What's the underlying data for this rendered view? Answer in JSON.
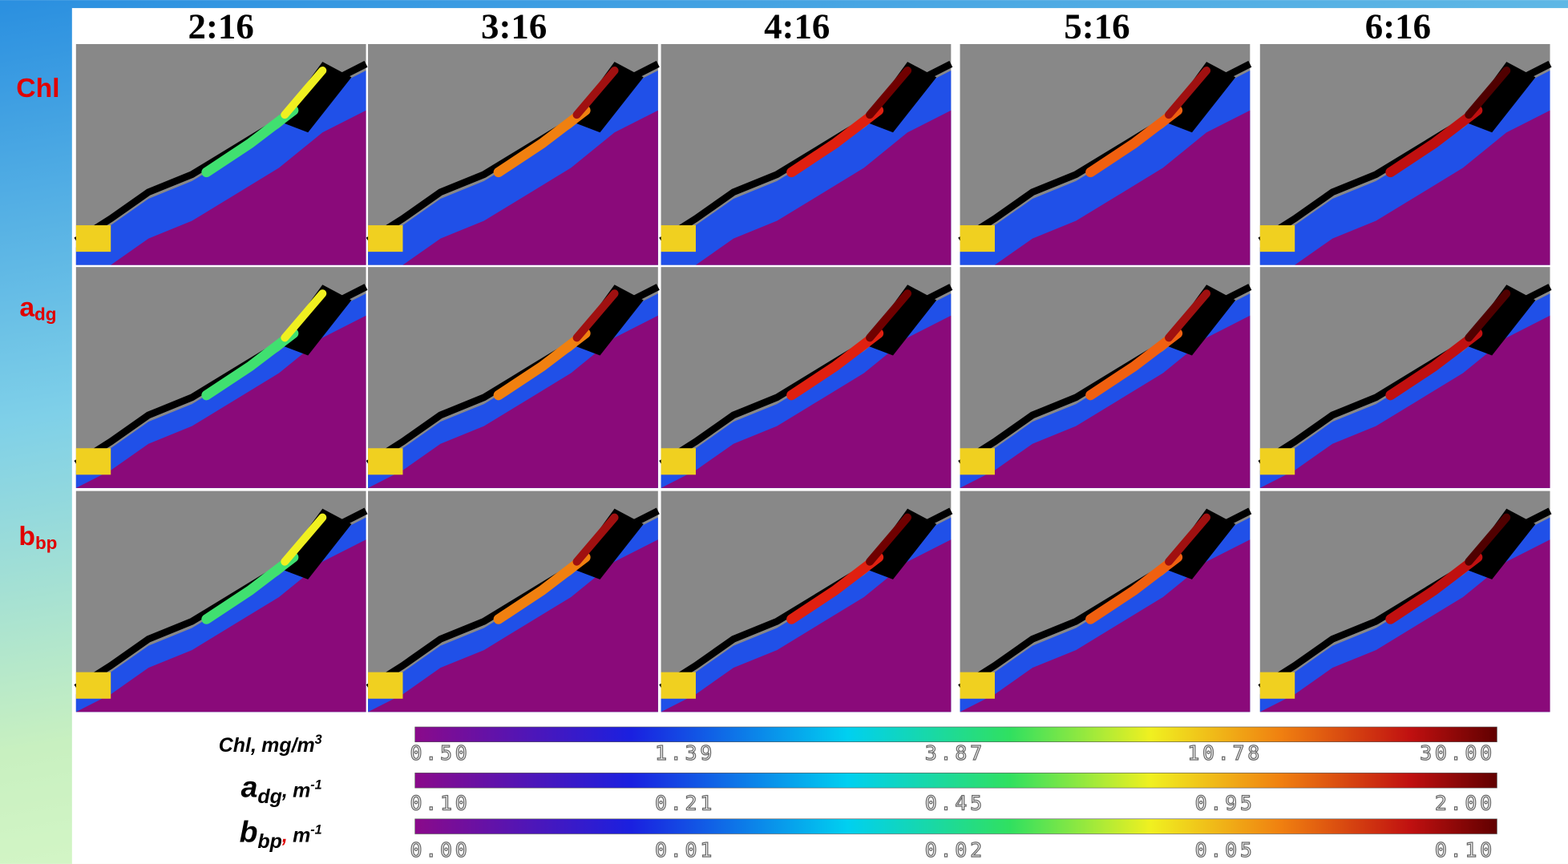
{
  "columns": [
    "2:16",
    "3:16",
    "4:16",
    "5:16",
    "6:16"
  ],
  "rows": [
    {
      "symbol": "Chl"
    },
    {
      "symbol": "a",
      "subscript": "dg"
    },
    {
      "symbol": "b",
      "subscript": "bp"
    }
  ],
  "colorbars": [
    {
      "symbol": "Chl",
      "separator": ",",
      "unit": "mg/m",
      "exponent": "3",
      "ticks": [
        "0.50",
        "1.39",
        "3.87",
        "10.78",
        "30.00"
      ]
    },
    {
      "symbol": "a",
      "subscript": "dg",
      "separator": ",",
      "unit": "m",
      "exponent": "-1",
      "ticks": [
        "0.10",
        "0.21",
        "0.45",
        "0.95",
        "2.00"
      ]
    },
    {
      "symbol": "b",
      "subscript": "bp",
      "separator": ",",
      "unit": "m",
      "exponent": "-1",
      "ticks": [
        "0.00",
        "0.01",
        "0.02",
        "0.05",
        "0.10"
      ]
    }
  ]
}
